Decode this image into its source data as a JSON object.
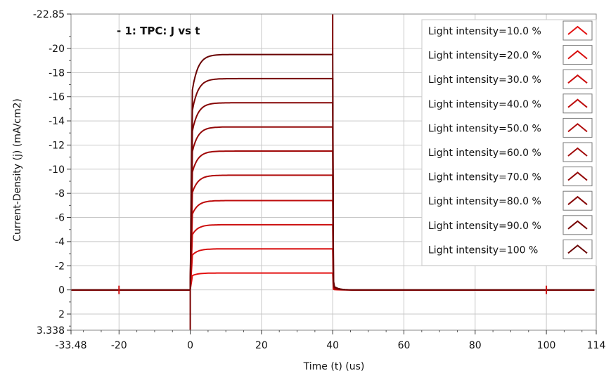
{
  "chart_data": {
    "type": "line",
    "title": "- 1: TPC: J vs t",
    "xlabel": "Time (t) (us)",
    "ylabel": "Current-Density (j) (mA/cm2)",
    "xlim": [
      -33.48,
      114
    ],
    "ylim": [
      3.338,
      -22.85
    ],
    "y_axis_inverted": true,
    "grid": true,
    "legend_placement": "right",
    "x_ticks": [
      -33.48,
      -20,
      0,
      20,
      40,
      60,
      80,
      100,
      114
    ],
    "x_tick_labels": [
      "-33.48",
      "-20",
      "0",
      "20",
      "40",
      "60",
      "80",
      "100",
      "114"
    ],
    "y_ticks": [
      -22.85,
      -20,
      -18,
      -16,
      -14,
      -12,
      -10,
      -8,
      -6,
      -4,
      -2,
      0,
      2,
      3.338
    ],
    "y_tick_labels": [
      "-22.85",
      "-20",
      "-18",
      "-16",
      "-14",
      "-12",
      "-10",
      "-8",
      "-6",
      "-4",
      "-2",
      "0",
      "2",
      "3.338"
    ],
    "pulse_on": 0,
    "pulse_off": 40,
    "series": [
      {
        "name": "Light intensity=10.0 %",
        "plateau": -1.4,
        "color": "#e31010"
      },
      {
        "name": "Light intensity=20.0 %",
        "plateau": -3.4,
        "color": "#d80f0f"
      },
      {
        "name": "Light intensity=30.0 %",
        "plateau": -5.4,
        "color": "#cc0e0e"
      },
      {
        "name": "Light intensity=40.0 %",
        "plateau": -7.4,
        "color": "#be0c0c"
      },
      {
        "name": "Light intensity=50.0 %",
        "plateau": -9.5,
        "color": "#b00b0b"
      },
      {
        "name": "Light intensity=60.0 %",
        "plateau": -11.5,
        "color": "#a10909"
      },
      {
        "name": "Light intensity=70.0 %",
        "plateau": -13.5,
        "color": "#930808"
      },
      {
        "name": "Light intensity=80.0 %",
        "plateau": -15.5,
        "color": "#860606"
      },
      {
        "name": "Light intensity=90.0 %",
        "plateau": -17.5,
        "color": "#780505"
      },
      {
        "name": "Light intensity=100 %",
        "plateau": -19.5,
        "color": "#6a0404"
      }
    ]
  }
}
